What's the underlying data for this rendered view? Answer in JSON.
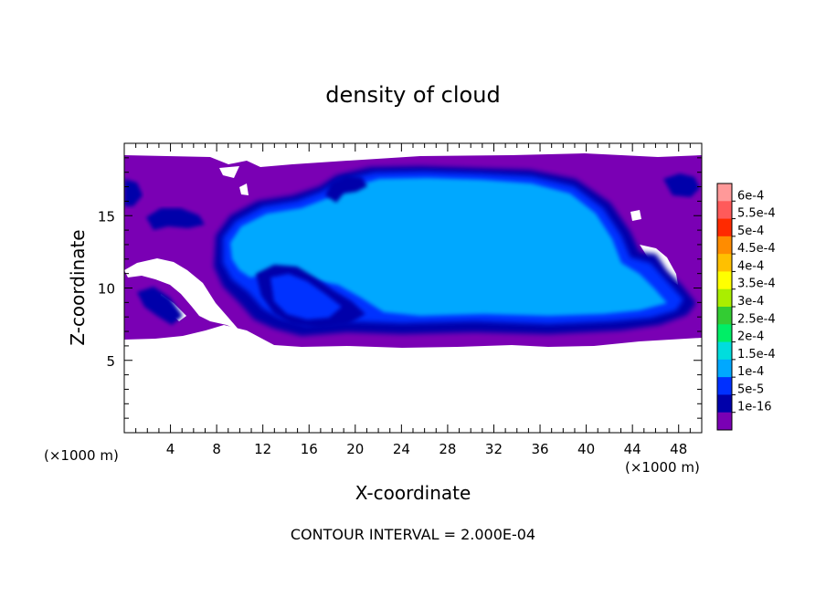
{
  "chart_data": {
    "type": "heatmap",
    "title": "density of cloud",
    "xlabel": "X-coordinate",
    "ylabel": "Z-coordinate",
    "x_unit": "(×1000 m)",
    "x_unit_right": "(×1000 m)",
    "footer": "CONTOUR INTERVAL = 2.000E-04",
    "xlim": [
      0,
      50
    ],
    "ylim": [
      0,
      20
    ],
    "x_ticks": [
      4,
      8,
      12,
      16,
      20,
      24,
      28,
      32,
      36,
      40,
      44,
      48
    ],
    "y_ticks": [
      5,
      10,
      15
    ],
    "colorbar": {
      "labels": [
        "6e-4",
        "5.5e-4",
        "5e-4",
        "4.5e-4",
        "4e-4",
        "3.5e-4",
        "3e-4",
        "2.5e-4",
        "2e-4",
        "1.5e-4",
        "1e-4",
        "5e-5",
        "1e-16"
      ],
      "colors": [
        "#ff9999",
        "#ff5a5a",
        "#ff2a00",
        "#ff8c00",
        "#ffc000",
        "#ffff00",
        "#aaee00",
        "#33cc33",
        "#00ee66",
        "#00dddd",
        "#00a8ff",
        "#0030ff",
        "#0000aa",
        "#7a00b4"
      ]
    },
    "colors": {
      "background_level": "#7a00b4",
      "level_5e-5": "#0000aa",
      "level_1e-4": "#0030ff",
      "level_1.5e-4": "#00a8ff"
    }
  }
}
